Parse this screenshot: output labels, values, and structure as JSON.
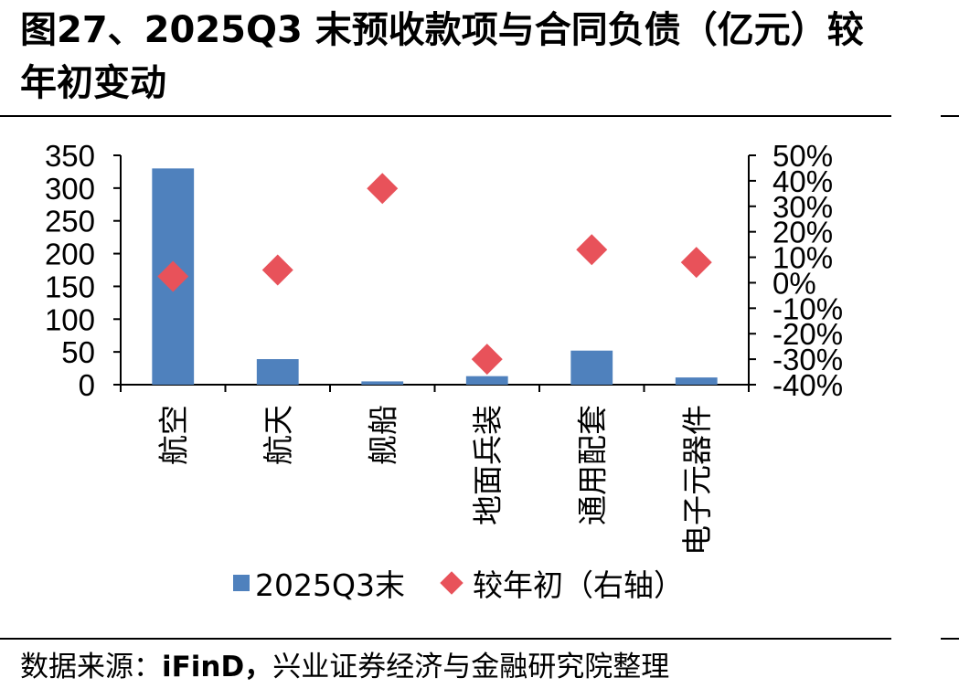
{
  "figure": {
    "title": "图27、2025Q3 末预收款项与合同负债（亿元）较年初变动",
    "source_prefix": "数据来源：",
    "source_name": "iFinD，",
    "source_suffix": "兴业证券经济与金融研究院整理"
  },
  "colors": {
    "bar": "#4f81bd",
    "marker": "#e8525a",
    "axis": "#000000"
  },
  "legend": {
    "bar_label": "2025Q3末",
    "marker_label": "较年初（右轴）",
    "placement": "bottom"
  },
  "chart_data": {
    "type": "bar",
    "categories": [
      "航空",
      "航天",
      "舰船",
      "地面兵装",
      "通用配套",
      "电子元器件"
    ],
    "series": [
      {
        "name": "2025Q3末",
        "type": "bar",
        "axis": "left",
        "values": [
          330,
          39,
          5,
          13,
          52,
          11
        ]
      },
      {
        "name": "较年初（右轴）",
        "type": "scatter",
        "axis": "right",
        "marker": "diamond",
        "values": [
          0.025,
          0.05,
          0.37,
          -0.3,
          0.13,
          0.08
        ]
      }
    ],
    "y_left": {
      "min": 0,
      "max": 350,
      "ticks": [
        0,
        50,
        100,
        150,
        200,
        250,
        300,
        350
      ],
      "tick_labels": [
        "0",
        "50",
        "100",
        "150",
        "200",
        "250",
        "300",
        "350"
      ]
    },
    "y_right": {
      "min": -0.4,
      "max": 0.5,
      "ticks": [
        -0.4,
        -0.3,
        -0.2,
        -0.1,
        0,
        0.1,
        0.2,
        0.3,
        0.4,
        0.5
      ],
      "tick_labels": [
        "-40%",
        "-30%",
        "-20%",
        "-10%",
        "0%",
        "10%",
        "20%",
        "30%",
        "40%",
        "50%"
      ]
    },
    "grid": false
  }
}
